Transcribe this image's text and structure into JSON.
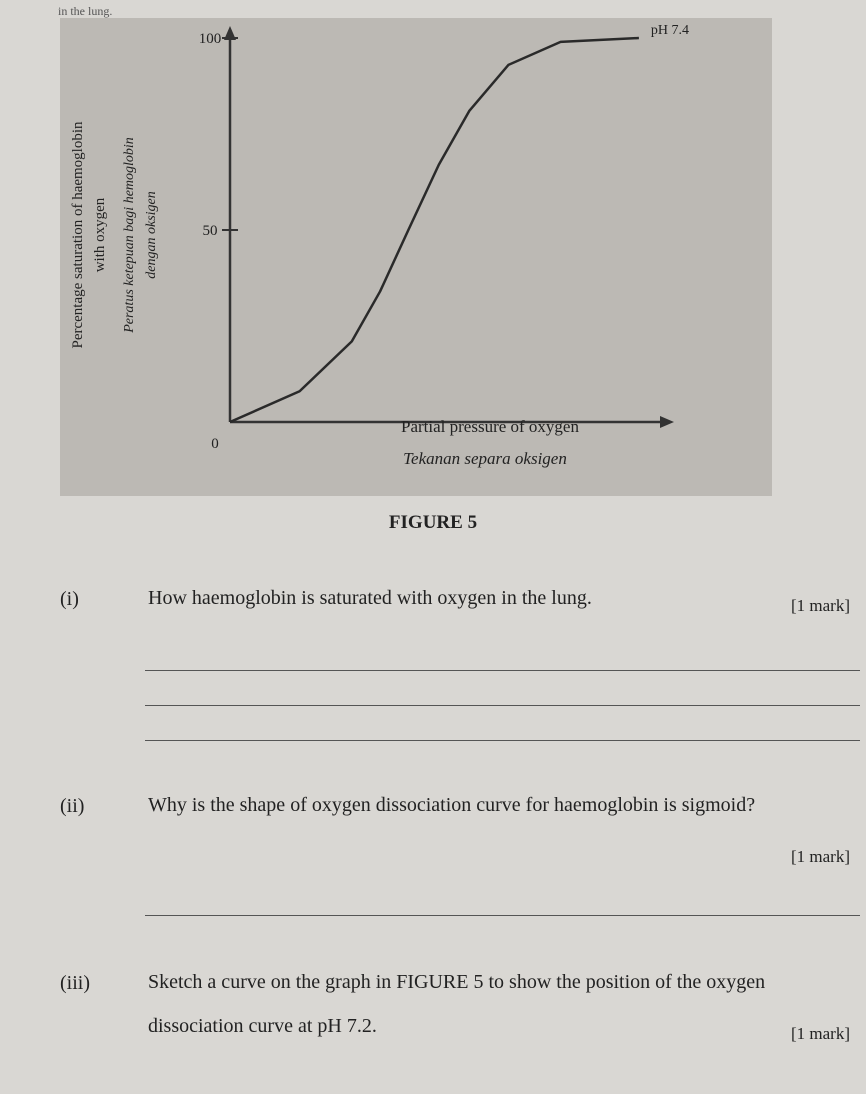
{
  "header_text": "in the lung.",
  "chart_data": {
    "type": "line",
    "ylabel": [
      "Percentage saturation of haemoglobin",
      "with oxygen"
    ],
    "ylabel_ms": [
      "Peratus ketepuan bagi hemoglobin",
      "dengan oksigen"
    ],
    "xlabel": "Partial pressure of oxygen",
    "xlabel_ms": "Tekanan separa oksigen",
    "x": [
      0,
      16,
      28,
      34.5,
      41,
      48,
      55,
      64,
      76,
      94
    ],
    "series": [
      {
        "name": "pH 7.4",
        "color": "#2a2a2a",
        "values": [
          0,
          8,
          21,
          34,
          50,
          67,
          81,
          93,
          99,
          100
        ]
      }
    ],
    "xlim": [
      0,
      100
    ],
    "ylim": [
      0,
      100
    ],
    "yticks": [
      0,
      50,
      100
    ]
  },
  "figure_caption": "FIGURE 5",
  "questions": [
    {
      "number": "(i)",
      "text": "How haemoglobin is saturated with oxygen in the lung.",
      "marks": "[1 mark]"
    },
    {
      "number": "(ii)",
      "text": "Why is the shape of oxygen dissociation curve for haemoglobin is sigmoid?",
      "marks": "[1 mark]"
    },
    {
      "number": "(iii)",
      "text": "Sketch a curve on the graph in FIGURE 5 to show the position of the oxygen dissociation curve at pH 7.2.",
      "marks": "[1 mark]"
    }
  ]
}
